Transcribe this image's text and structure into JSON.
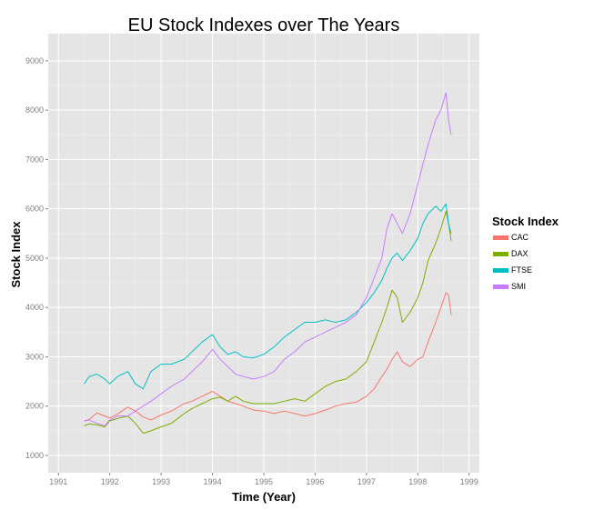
{
  "chart_data": {
    "type": "line",
    "title": "EU Stock Indexes over The Years",
    "xlabel": "Time (Year)",
    "ylabel": "Stock Index",
    "xlim": [
      1990.8,
      1999.2
    ],
    "ylim": [
      650,
      9550
    ],
    "x_ticks": [
      1991,
      1992,
      1993,
      1994,
      1995,
      1996,
      1997,
      1998,
      1999
    ],
    "y_ticks": [
      1000,
      2000,
      3000,
      4000,
      5000,
      6000,
      7000,
      8000,
      9000
    ],
    "grid": true,
    "background": "#e5e5e5",
    "legend": {
      "title": "Stock Index",
      "position": "right"
    },
    "series": [
      {
        "name": "CAC",
        "color": "#f8766d",
        "points": [
          [
            1991.5,
            1700
          ],
          [
            1991.6,
            1730
          ],
          [
            1991.75,
            1860
          ],
          [
            1991.9,
            1800
          ],
          [
            1992.0,
            1760
          ],
          [
            1992.15,
            1840
          ],
          [
            1992.35,
            1980
          ],
          [
            1992.5,
            1900
          ],
          [
            1992.65,
            1780
          ],
          [
            1992.8,
            1720
          ],
          [
            1993.0,
            1820
          ],
          [
            1993.2,
            1900
          ],
          [
            1993.45,
            2050
          ],
          [
            1993.6,
            2100
          ],
          [
            1993.8,
            2200
          ],
          [
            1994.0,
            2300
          ],
          [
            1994.15,
            2200
          ],
          [
            1994.3,
            2100
          ],
          [
            1994.45,
            2050
          ],
          [
            1994.6,
            2000
          ],
          [
            1994.8,
            1920
          ],
          [
            1995.0,
            1900
          ],
          [
            1995.2,
            1850
          ],
          [
            1995.4,
            1900
          ],
          [
            1995.6,
            1850
          ],
          [
            1995.8,
            1800
          ],
          [
            1996.0,
            1850
          ],
          [
            1996.2,
            1920
          ],
          [
            1996.4,
            2000
          ],
          [
            1996.6,
            2050
          ],
          [
            1996.8,
            2080
          ],
          [
            1997.0,
            2200
          ],
          [
            1997.15,
            2350
          ],
          [
            1997.3,
            2600
          ],
          [
            1997.4,
            2750
          ],
          [
            1997.5,
            2950
          ],
          [
            1997.6,
            3100
          ],
          [
            1997.7,
            2900
          ],
          [
            1997.85,
            2800
          ],
          [
            1998.0,
            2950
          ],
          [
            1998.1,
            3000
          ],
          [
            1998.2,
            3300
          ],
          [
            1998.35,
            3700
          ],
          [
            1998.45,
            4000
          ],
          [
            1998.55,
            4300
          ],
          [
            1998.6,
            4250
          ],
          [
            1998.65,
            3850
          ]
        ]
      },
      {
        "name": "DAX",
        "color": "#7cae00",
        "points": [
          [
            1991.5,
            1600
          ],
          [
            1991.6,
            1640
          ],
          [
            1991.75,
            1620
          ],
          [
            1991.9,
            1580
          ],
          [
            1992.0,
            1700
          ],
          [
            1992.15,
            1750
          ],
          [
            1992.35,
            1800
          ],
          [
            1992.5,
            1650
          ],
          [
            1992.65,
            1450
          ],
          [
            1992.8,
            1500
          ],
          [
            1993.0,
            1580
          ],
          [
            1993.2,
            1650
          ],
          [
            1993.45,
            1850
          ],
          [
            1993.6,
            1950
          ],
          [
            1993.8,
            2050
          ],
          [
            1994.0,
            2150
          ],
          [
            1994.15,
            2180
          ],
          [
            1994.3,
            2100
          ],
          [
            1994.45,
            2200
          ],
          [
            1994.6,
            2100
          ],
          [
            1994.8,
            2050
          ],
          [
            1995.0,
            2050
          ],
          [
            1995.2,
            2050
          ],
          [
            1995.4,
            2100
          ],
          [
            1995.6,
            2150
          ],
          [
            1995.8,
            2100
          ],
          [
            1996.0,
            2250
          ],
          [
            1996.2,
            2400
          ],
          [
            1996.4,
            2500
          ],
          [
            1996.6,
            2550
          ],
          [
            1996.8,
            2700
          ],
          [
            1997.0,
            2900
          ],
          [
            1997.15,
            3300
          ],
          [
            1997.3,
            3700
          ],
          [
            1997.4,
            4000
          ],
          [
            1997.5,
            4350
          ],
          [
            1997.6,
            4200
          ],
          [
            1997.7,
            3700
          ],
          [
            1997.85,
            3900
          ],
          [
            1998.0,
            4200
          ],
          [
            1998.1,
            4500
          ],
          [
            1998.2,
            4950
          ],
          [
            1998.35,
            5300
          ],
          [
            1998.45,
            5600
          ],
          [
            1998.55,
            5950
          ],
          [
            1998.6,
            5700
          ],
          [
            1998.65,
            5350
          ]
        ]
      },
      {
        "name": "FTSE",
        "color": "#00bfc4",
        "points": [
          [
            1991.5,
            2450
          ],
          [
            1991.6,
            2600
          ],
          [
            1991.75,
            2650
          ],
          [
            1991.9,
            2550
          ],
          [
            1992.0,
            2450
          ],
          [
            1992.15,
            2600
          ],
          [
            1992.35,
            2700
          ],
          [
            1992.5,
            2450
          ],
          [
            1992.65,
            2350
          ],
          [
            1992.8,
            2700
          ],
          [
            1993.0,
            2850
          ],
          [
            1993.2,
            2850
          ],
          [
            1993.45,
            2950
          ],
          [
            1993.6,
            3100
          ],
          [
            1993.8,
            3300
          ],
          [
            1994.0,
            3450
          ],
          [
            1994.15,
            3200
          ],
          [
            1994.3,
            3050
          ],
          [
            1994.45,
            3100
          ],
          [
            1994.6,
            3000
          ],
          [
            1994.8,
            2980
          ],
          [
            1995.0,
            3050
          ],
          [
            1995.2,
            3200
          ],
          [
            1995.4,
            3400
          ],
          [
            1995.6,
            3550
          ],
          [
            1995.8,
            3700
          ],
          [
            1996.0,
            3700
          ],
          [
            1996.2,
            3750
          ],
          [
            1996.4,
            3700
          ],
          [
            1996.6,
            3750
          ],
          [
            1996.8,
            3900
          ],
          [
            1997.0,
            4100
          ],
          [
            1997.15,
            4300
          ],
          [
            1997.3,
            4550
          ],
          [
            1997.4,
            4800
          ],
          [
            1997.5,
            5000
          ],
          [
            1997.6,
            5100
          ],
          [
            1997.7,
            4950
          ],
          [
            1997.85,
            5150
          ],
          [
            1998.0,
            5400
          ],
          [
            1998.1,
            5700
          ],
          [
            1998.2,
            5900
          ],
          [
            1998.35,
            6050
          ],
          [
            1998.45,
            5950
          ],
          [
            1998.55,
            6100
          ],
          [
            1998.6,
            5700
          ],
          [
            1998.65,
            5500
          ]
        ]
      },
      {
        "name": "SMI",
        "color": "#c77cff",
        "points": [
          [
            1991.5,
            1700
          ],
          [
            1991.6,
            1720
          ],
          [
            1991.75,
            1650
          ],
          [
            1991.9,
            1600
          ],
          [
            1992.0,
            1720
          ],
          [
            1992.15,
            1800
          ],
          [
            1992.35,
            1800
          ],
          [
            1992.5,
            1900
          ],
          [
            1992.65,
            2000
          ],
          [
            1992.8,
            2100
          ],
          [
            1993.0,
            2250
          ],
          [
            1993.2,
            2400
          ],
          [
            1993.45,
            2550
          ],
          [
            1993.6,
            2700
          ],
          [
            1993.8,
            2900
          ],
          [
            1994.0,
            3150
          ],
          [
            1994.15,
            2950
          ],
          [
            1994.3,
            2800
          ],
          [
            1994.45,
            2650
          ],
          [
            1994.6,
            2600
          ],
          [
            1994.8,
            2550
          ],
          [
            1995.0,
            2600
          ],
          [
            1995.2,
            2700
          ],
          [
            1995.4,
            2950
          ],
          [
            1995.6,
            3100
          ],
          [
            1995.8,
            3300
          ],
          [
            1996.0,
            3400
          ],
          [
            1996.2,
            3500
          ],
          [
            1996.4,
            3600
          ],
          [
            1996.6,
            3700
          ],
          [
            1996.8,
            3850
          ],
          [
            1997.0,
            4200
          ],
          [
            1997.15,
            4600
          ],
          [
            1997.3,
            5000
          ],
          [
            1997.4,
            5600
          ],
          [
            1997.5,
            5900
          ],
          [
            1997.6,
            5700
          ],
          [
            1997.7,
            5500
          ],
          [
            1997.85,
            5900
          ],
          [
            1998.0,
            6500
          ],
          [
            1998.1,
            6900
          ],
          [
            1998.2,
            7300
          ],
          [
            1998.35,
            7800
          ],
          [
            1998.45,
            8000
          ],
          [
            1998.55,
            8350
          ],
          [
            1998.6,
            7800
          ],
          [
            1998.65,
            7500
          ]
        ]
      }
    ]
  }
}
